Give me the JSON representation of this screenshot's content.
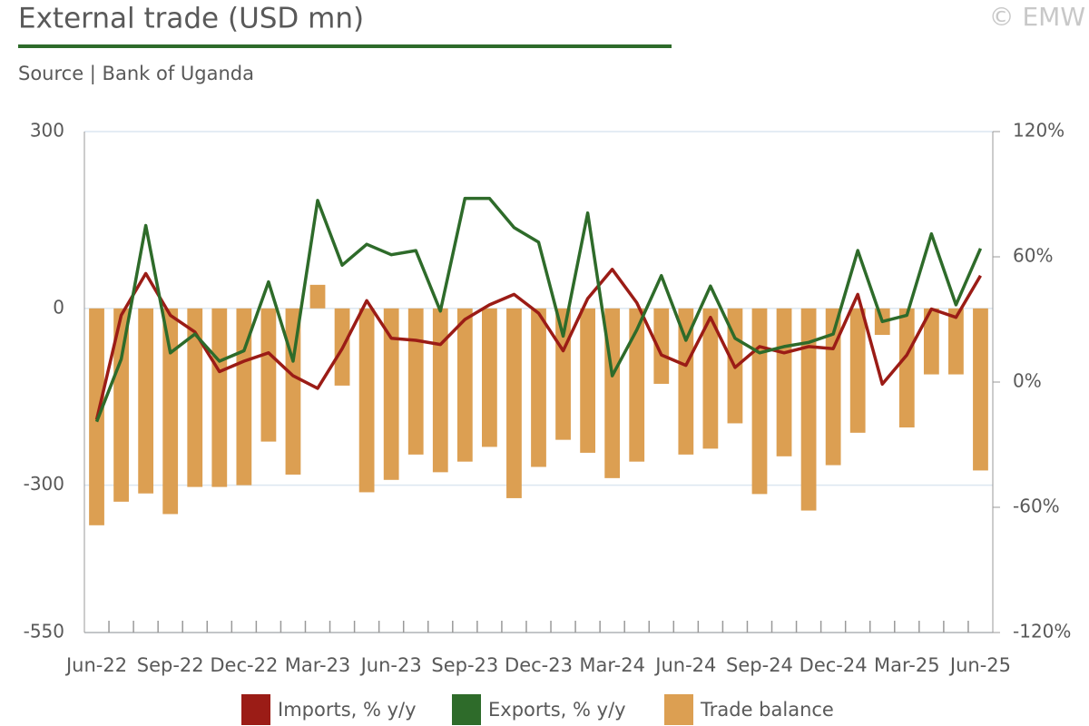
{
  "chart_data": {
    "type": "bar-line",
    "title": "External trade (USD mn)",
    "subtitle": "Source | Bank of Uganda",
    "watermark": "© EMW",
    "categories": [
      "Jun-22",
      null,
      null,
      "Sep-22",
      null,
      null,
      "Dec-22",
      null,
      null,
      "Mar-23",
      null,
      null,
      "Jun-23",
      null,
      null,
      "Sep-23",
      null,
      null,
      "Dec-23",
      null,
      null,
      "Mar-24",
      null,
      null,
      "Jun-24",
      null,
      null,
      "Sep-24",
      null,
      null,
      "Dec-24",
      null,
      null,
      "Mar-25",
      null,
      null,
      "Jun-25"
    ],
    "series": [
      {
        "name": "Imports, % y/y",
        "color": "#9b1c16",
        "type": "line",
        "axis": "y2",
        "values": [
          -18,
          32,
          52,
          32,
          24,
          5,
          10,
          14,
          3,
          -3,
          16,
          39,
          21,
          20,
          18,
          30,
          37,
          42,
          33,
          15,
          40,
          54,
          38,
          13,
          8,
          31,
          7,
          17,
          14,
          17,
          16,
          42,
          -1,
          13,
          35,
          31,
          51
        ]
      },
      {
        "name": "Exports, % y/y",
        "color": "#2e6b2a",
        "type": "line",
        "axis": "y2",
        "values": [
          -19,
          11,
          75,
          14,
          23,
          10,
          15,
          48,
          10,
          87,
          56,
          66,
          61,
          63,
          34,
          88,
          88,
          74,
          67,
          22,
          81,
          3,
          25,
          51,
          20,
          46,
          21,
          14,
          17,
          19,
          23,
          63,
          29,
          32,
          71,
          37,
          64
        ]
      },
      {
        "name": "Trade balance",
        "color": "#dc9f52",
        "type": "bar",
        "values": [
          -368,
          -328,
          -314,
          -349,
          -303,
          -303,
          -300,
          -226,
          -282,
          40,
          -131,
          -312,
          -291,
          -248,
          -278,
          -260,
          -235,
          -322,
          -269,
          -223,
          -245,
          -288,
          -260,
          -128,
          -248,
          -238,
          -195,
          -315,
          -251,
          -343,
          -266,
          -211,
          -45,
          -202,
          -112,
          -112,
          -275
        ]
      }
    ],
    "ylim": [
      -550,
      300
    ],
    "yticks": [
      300,
      0,
      -300,
      -550
    ],
    "y2lim": [
      -120,
      120
    ],
    "y2ticks": [
      {
        "value": 120,
        "label": "120%"
      },
      {
        "value": 60,
        "label": "60%"
      },
      {
        "value": 0,
        "label": "0%"
      },
      {
        "value": -60,
        "label": "-60%"
      },
      {
        "value": -120,
        "label": "-120%"
      }
    ],
    "grid": true,
    "legend": "bottom"
  }
}
